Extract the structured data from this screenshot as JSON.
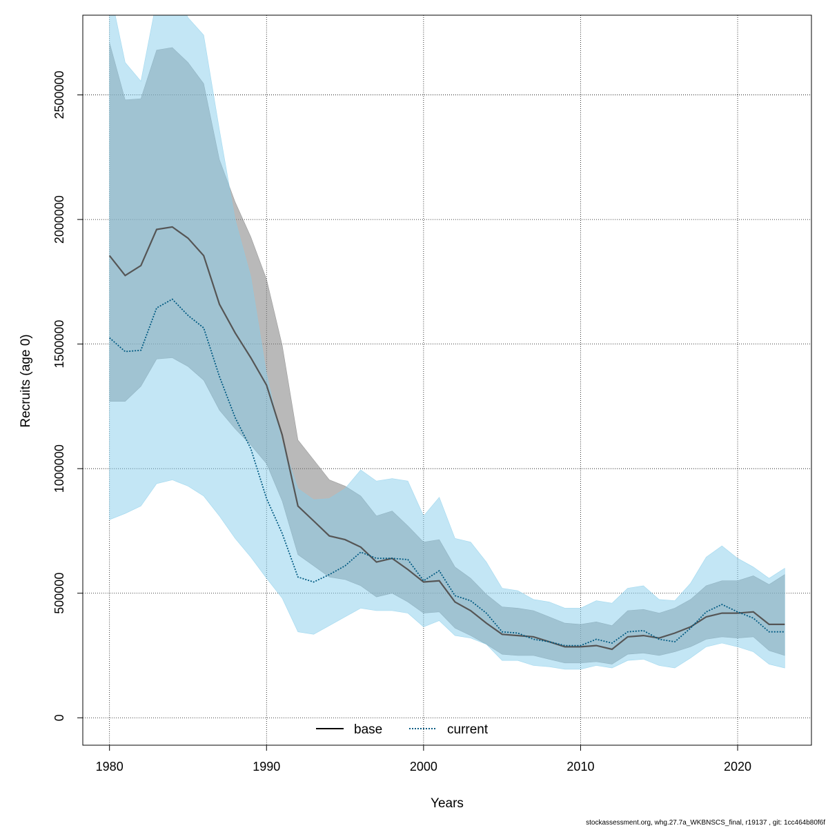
{
  "chart_data": {
    "type": "area",
    "title": "",
    "xlabel": "Years",
    "ylabel": "Recruits (age 0)",
    "xlim": [
      1978.3,
      2024.7
    ],
    "ylim": [
      -110000,
      2820000
    ],
    "x_ticks": [
      1980,
      1990,
      2000,
      2010,
      2020
    ],
    "x_tick_labels": [
      "1980",
      "1990",
      "2000",
      "2010",
      "2020"
    ],
    "y_ticks": [
      0,
      500000,
      1000000,
      1500000,
      2000000,
      2500000
    ],
    "y_tick_labels": [
      "0",
      "500000",
      "1000000",
      "1500000",
      "2000000",
      "2500000"
    ],
    "grid": true,
    "legend_position": "bottom-center",
    "x": [
      1980,
      1981,
      1982,
      1983,
      1984,
      1985,
      1986,
      1987,
      1988,
      1989,
      1990,
      1991,
      1992,
      1993,
      1994,
      1995,
      1996,
      1997,
      1998,
      1999,
      2000,
      2001,
      2002,
      2003,
      2004,
      2005,
      2006,
      2007,
      2008,
      2009,
      2010,
      2011,
      2012,
      2013,
      2014,
      2015,
      2016,
      2017,
      2018,
      2019,
      2020,
      2021,
      2022,
      2023
    ],
    "series": [
      {
        "name": "base",
        "color": "#555555",
        "band_color": "#808080",
        "line_style": "solid",
        "values": [
          1855000,
          1775000,
          1815000,
          1960000,
          1970000,
          1925000,
          1855000,
          1660000,
          1545000,
          1445000,
          1335000,
          1135000,
          850000,
          790000,
          730000,
          715000,
          685000,
          625000,
          640000,
          595000,
          545000,
          550000,
          465000,
          430000,
          380000,
          335000,
          330000,
          325000,
          305000,
          285000,
          285000,
          290000,
          275000,
          325000,
          330000,
          320000,
          340000,
          365000,
          405000,
          420000,
          420000,
          425000,
          375000,
          375000
        ],
        "lower": [
          1270000,
          1270000,
          1330000,
          1440000,
          1445000,
          1410000,
          1355000,
          1235000,
          1160000,
          1095000,
          1020000,
          870000,
          655000,
          610000,
          565000,
          555000,
          530000,
          485000,
          500000,
          465000,
          420000,
          425000,
          360000,
          330000,
          295000,
          255000,
          250000,
          250000,
          235000,
          220000,
          220000,
          225000,
          215000,
          255000,
          260000,
          250000,
          265000,
          285000,
          315000,
          325000,
          320000,
          325000,
          270000,
          250000
        ],
        "upper": [
          2710000,
          2480000,
          2485000,
          2680000,
          2690000,
          2630000,
          2545000,
          2240000,
          2070000,
          1930000,
          1760000,
          1495000,
          1115000,
          1035000,
          955000,
          930000,
          890000,
          810000,
          830000,
          770000,
          705000,
          715000,
          605000,
          560000,
          495000,
          445000,
          440000,
          430000,
          405000,
          380000,
          375000,
          385000,
          370000,
          430000,
          435000,
          420000,
          440000,
          475000,
          530000,
          550000,
          550000,
          570000,
          535000,
          575000
        ]
      },
      {
        "name": "current",
        "color": "#005a82",
        "band_color": "#87ceeb",
        "line_style": "dotted",
        "values": [
          1525000,
          1470000,
          1475000,
          1645000,
          1680000,
          1615000,
          1565000,
          1370000,
          1205000,
          1080000,
          880000,
          740000,
          565000,
          545000,
          575000,
          610000,
          665000,
          640000,
          640000,
          635000,
          550000,
          590000,
          490000,
          470000,
          420000,
          345000,
          340000,
          315000,
          305000,
          290000,
          290000,
          315000,
          300000,
          345000,
          350000,
          315000,
          305000,
          360000,
          425000,
          455000,
          425000,
          400000,
          345000,
          345000
        ],
        "lower": [
          795000,
          820000,
          850000,
          940000,
          955000,
          930000,
          890000,
          810000,
          720000,
          645000,
          560000,
          480000,
          345000,
          335000,
          370000,
          405000,
          440000,
          430000,
          430000,
          420000,
          365000,
          390000,
          330000,
          320000,
          295000,
          230000,
          230000,
          210000,
          205000,
          195000,
          195000,
          210000,
          200000,
          230000,
          235000,
          210000,
          200000,
          240000,
          285000,
          300000,
          285000,
          265000,
          215000,
          200000
        ],
        "upper": [
          2930000,
          2630000,
          2555000,
          2880000,
          2945000,
          2810000,
          2740000,
          2360000,
          2000000,
          1770000,
          1380000,
          1105000,
          920000,
          875000,
          880000,
          920000,
          995000,
          950000,
          960000,
          950000,
          810000,
          885000,
          720000,
          705000,
          625000,
          520000,
          510000,
          475000,
          465000,
          440000,
          440000,
          470000,
          460000,
          520000,
          530000,
          475000,
          470000,
          540000,
          645000,
          690000,
          640000,
          605000,
          560000,
          600000
        ]
      }
    ]
  },
  "footer": "stockassessment.org, whg.27.7a_WKBNSCS_final, r19137 , git: 1cc464b80f6f"
}
